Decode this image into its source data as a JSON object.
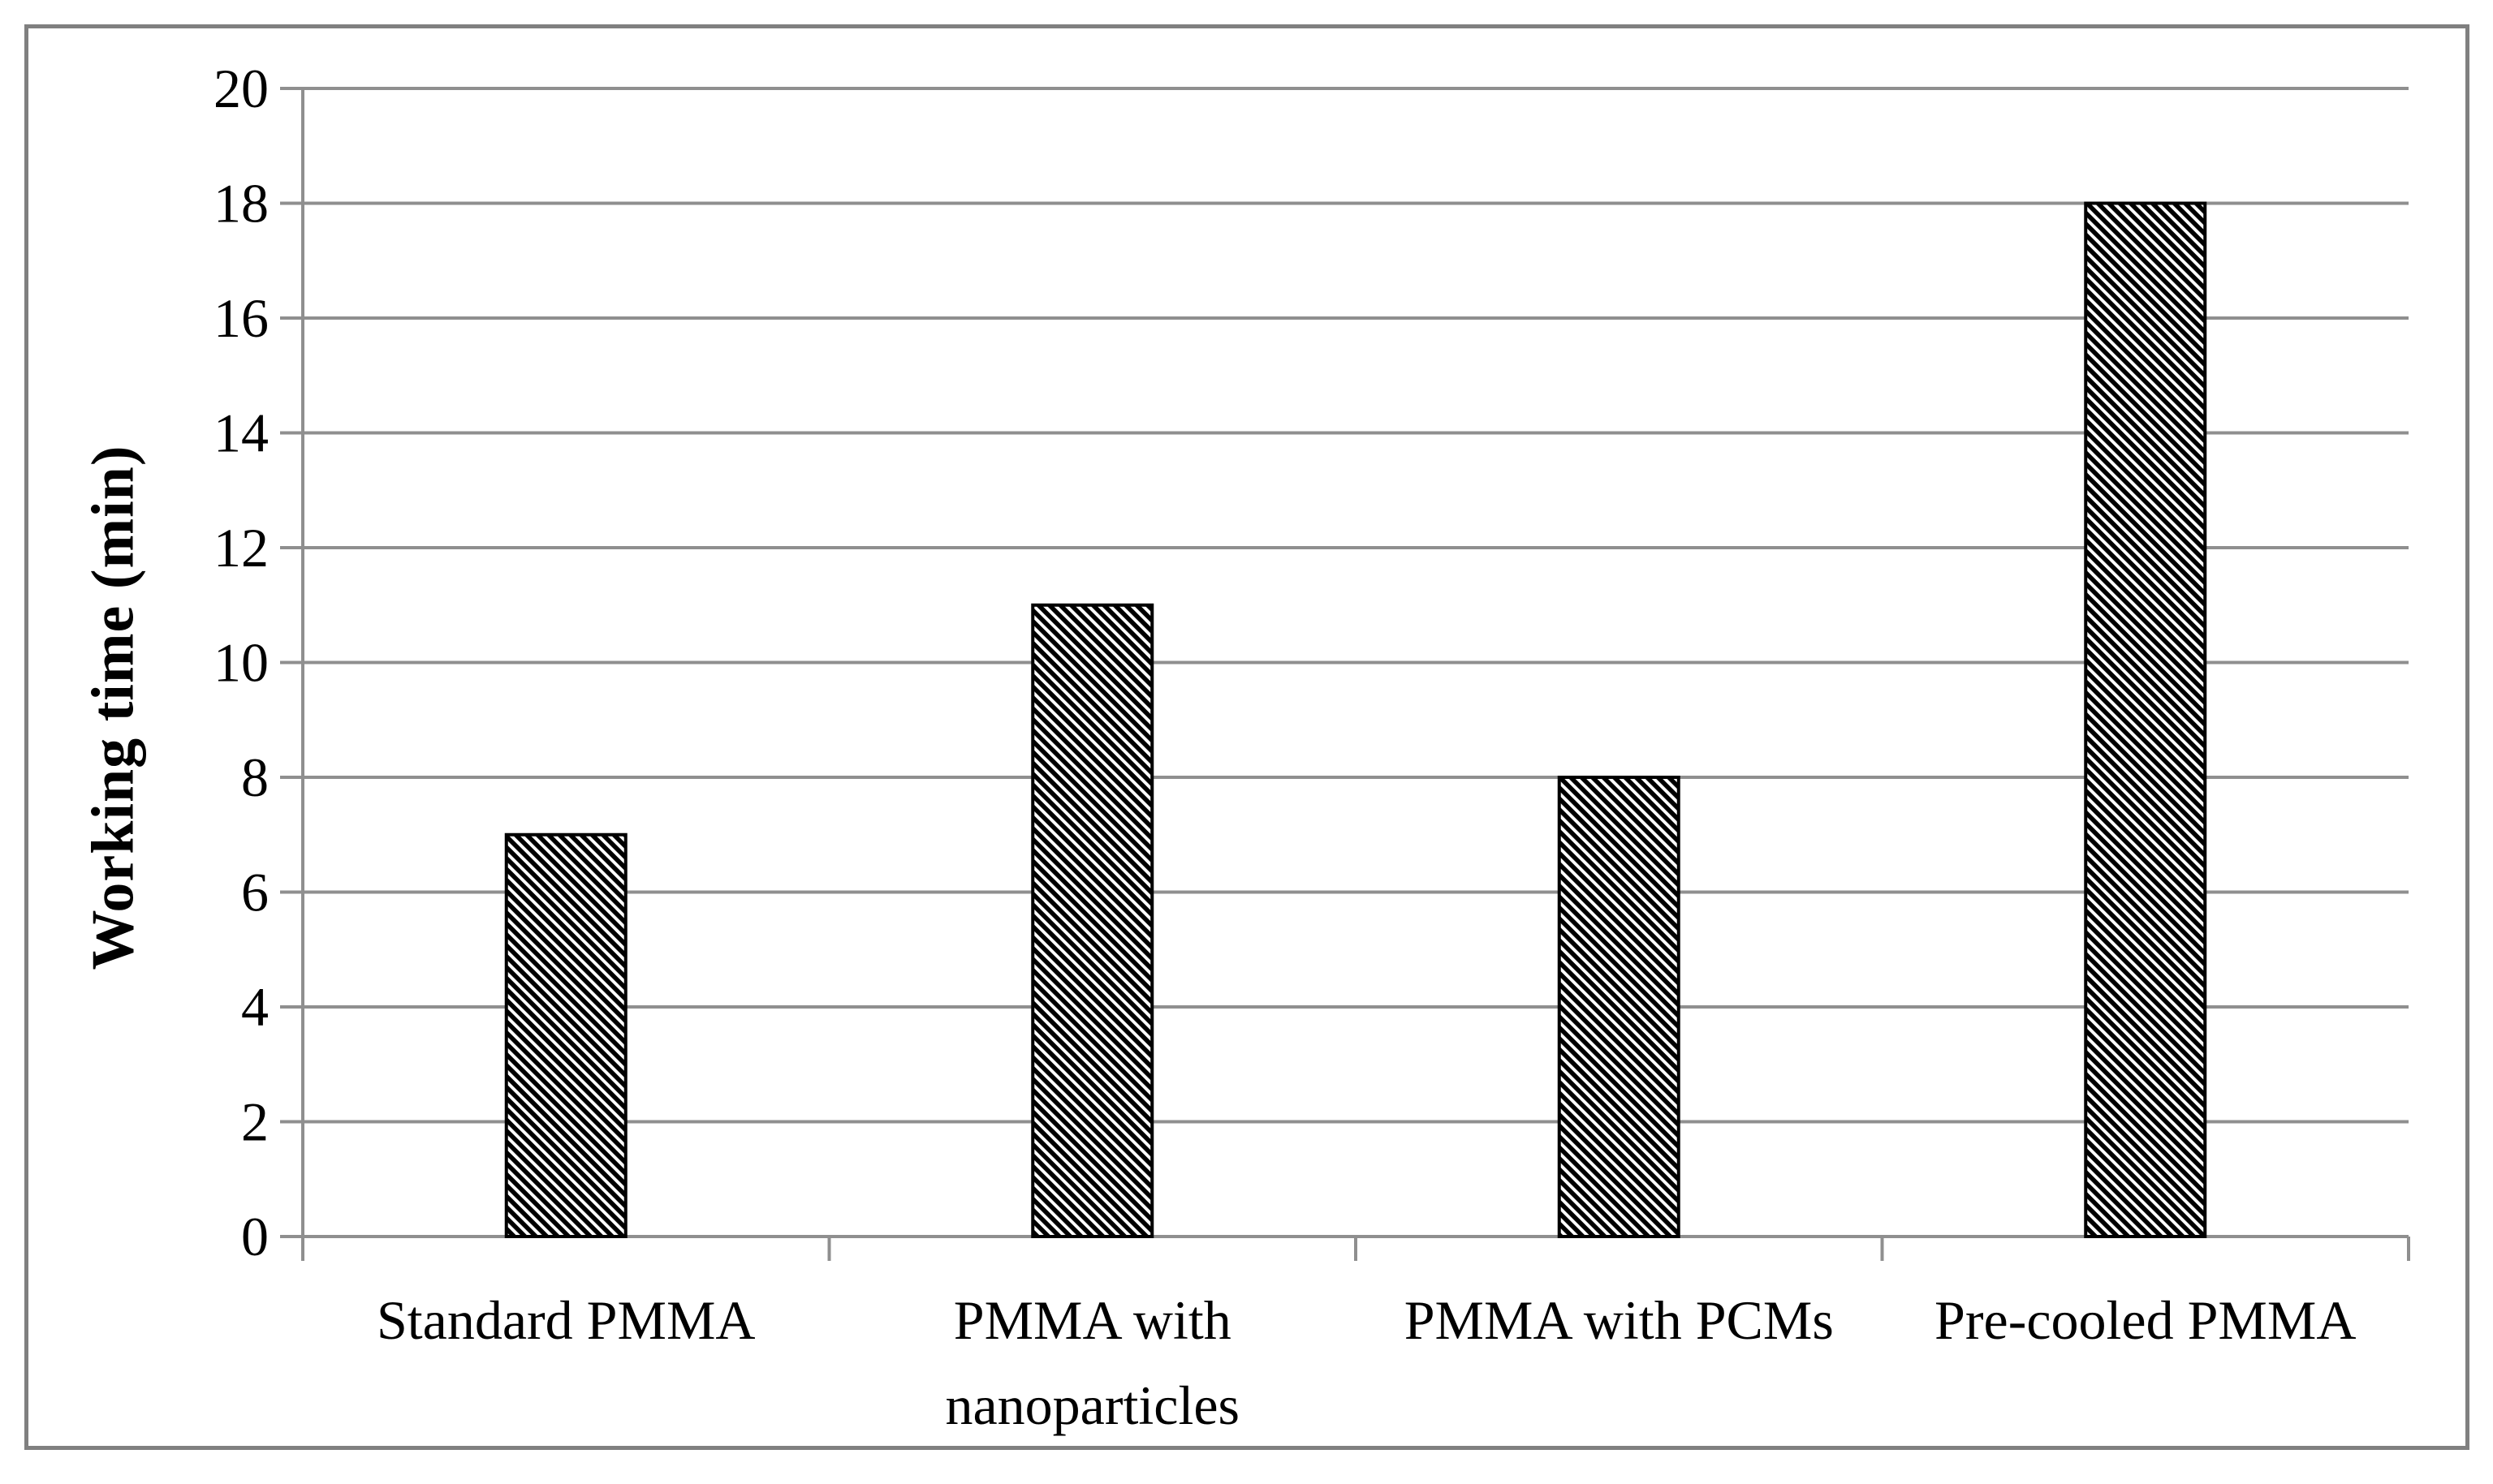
{
  "chart_data": {
    "type": "bar",
    "title": "",
    "categories": [
      "Standard PMMA",
      "PMMA with nanoparticles",
      "PMMA with PCMs",
      "Pre-cooled PMMA"
    ],
    "values": [
      7,
      11,
      8,
      18
    ],
    "xlabel": "",
    "ylabel": "Working time (min)",
    "ylim": [
      0,
      20
    ],
    "yticks": [
      0,
      2,
      4,
      6,
      8,
      10,
      12,
      14,
      16,
      18,
      20
    ],
    "grid": "horizontal-gridlines-on",
    "legend_position": "none",
    "bar_style": {
      "fill": "diagonal-hatch",
      "hatch_direction": "backslash",
      "hatch_color": "#000000",
      "hatch_background": "#ffffff",
      "border_color": "#000000"
    },
    "colors": {
      "gridline": "#8f8f8f",
      "axis": "#8f8f8f",
      "frame_border": "#808080",
      "text": "#000000",
      "background": "#ffffff"
    }
  }
}
